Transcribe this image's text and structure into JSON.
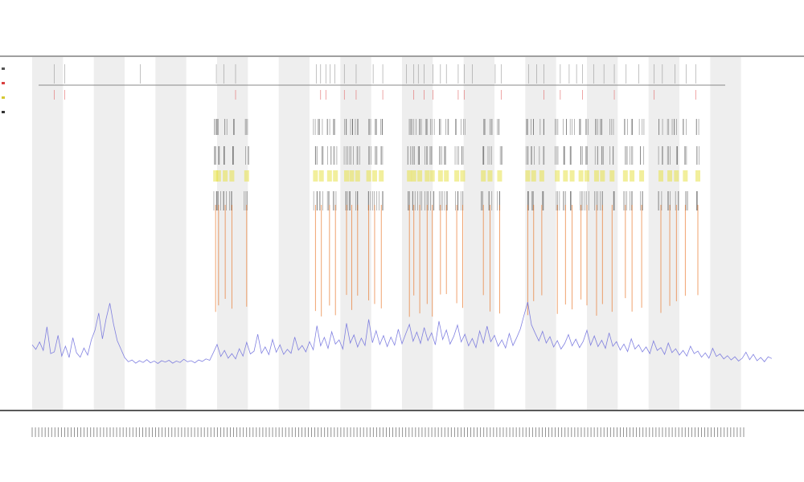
{
  "chart_data": {
    "type": "line",
    "title_lines": [
      "",
      "",
      ""
    ],
    "xlabel": "",
    "ylabel": "",
    "x_range": [
      0,
      100
    ],
    "y_range": [
      0,
      100
    ],
    "grid": false,
    "legend_position": "top-left",
    "legend": [
      {
        "name": "",
        "color": "#555555"
      },
      {
        "name": "",
        "color": "#d94040"
      },
      {
        "name": "",
        "color": "#d6c832"
      },
      {
        "name": "",
        "color": "#333333"
      }
    ],
    "band_count": 12,
    "band_color": "#eeeeee",
    "trace_color": "#6b6bdc",
    "spike_color": "#e8752a",
    "highlight_color": "#e7e24a",
    "tick_color": "#333333",
    "x_tick_count": 220,
    "spike_positions": [
      24.8,
      25.2,
      26.1,
      27.0,
      29.0,
      38.3,
      39.1,
      40.2,
      41.0,
      42.5,
      43.2,
      44.0,
      45.5,
      46.3,
      47.2,
      51.0,
      51.6,
      52.4,
      53.4,
      54.1,
      55.2,
      56.0,
      57.4,
      58.2,
      61.0,
      61.9,
      63.2,
      67.0,
      67.8,
      68.9,
      71.0,
      72.1,
      73.0,
      74.2,
      75.0,
      76.3,
      77.1,
      78.4,
      80.2,
      81.1,
      82.4,
      85.0,
      86.2,
      87.1,
      88.3,
      90.0
    ],
    "trace_points": [
      [
        0.0,
        18.4
      ],
      [
        0.5,
        17.1
      ],
      [
        1.0,
        19.2
      ],
      [
        1.5,
        16.8
      ],
      [
        2.0,
        23.5
      ],
      [
        2.5,
        15.9
      ],
      [
        3.0,
        16.4
      ],
      [
        3.5,
        21.1
      ],
      [
        4.0,
        15.2
      ],
      [
        4.5,
        18.0
      ],
      [
        5.0,
        14.8
      ],
      [
        5.5,
        20.4
      ],
      [
        6.0,
        16.1
      ],
      [
        6.5,
        14.9
      ],
      [
        7.0,
        17.5
      ],
      [
        7.5,
        15.5
      ],
      [
        8.0,
        19.8
      ],
      [
        8.5,
        22.6
      ],
      [
        9.0,
        27.4
      ],
      [
        9.5,
        20.1
      ],
      [
        10.0,
        25.8
      ],
      [
        10.5,
        30.2
      ],
      [
        11.0,
        24.3
      ],
      [
        11.5,
        19.6
      ],
      [
        12.0,
        17.2
      ],
      [
        12.5,
        14.8
      ],
      [
        13.0,
        13.6
      ],
      [
        13.5,
        14.1
      ],
      [
        14.0,
        13.2
      ],
      [
        14.5,
        13.9
      ],
      [
        15.0,
        13.4
      ],
      [
        15.5,
        14.2
      ],
      [
        16.0,
        13.3
      ],
      [
        16.5,
        13.8
      ],
      [
        17.0,
        13.1
      ],
      [
        17.5,
        13.9
      ],
      [
        18.0,
        13.5
      ],
      [
        18.5,
        14.0
      ],
      [
        19.0,
        13.2
      ],
      [
        19.5,
        13.8
      ],
      [
        20.0,
        13.4
      ],
      [
        20.5,
        14.3
      ],
      [
        21.0,
        13.6
      ],
      [
        21.5,
        13.9
      ],
      [
        22.0,
        13.3
      ],
      [
        22.5,
        14.1
      ],
      [
        23.0,
        13.7
      ],
      [
        23.5,
        14.4
      ],
      [
        24.0,
        14.0
      ],
      [
        24.5,
        16.2
      ],
      [
        25.0,
        18.5
      ],
      [
        25.5,
        15.1
      ],
      [
        26.0,
        16.8
      ],
      [
        26.5,
        14.6
      ],
      [
        27.0,
        15.9
      ],
      [
        27.5,
        14.4
      ],
      [
        28.0,
        17.3
      ],
      [
        28.5,
        15.2
      ],
      [
        29.0,
        19.1
      ],
      [
        29.5,
        15.8
      ],
      [
        30.0,
        16.6
      ],
      [
        30.5,
        21.4
      ],
      [
        31.0,
        16.0
      ],
      [
        31.5,
        17.8
      ],
      [
        32.0,
        15.6
      ],
      [
        32.5,
        19.9
      ],
      [
        33.0,
        16.3
      ],
      [
        33.5,
        18.4
      ],
      [
        34.0,
        15.7
      ],
      [
        34.5,
        17.1
      ],
      [
        35.0,
        16.0
      ],
      [
        35.5,
        20.6
      ],
      [
        36.0,
        16.9
      ],
      [
        36.5,
        18.2
      ],
      [
        37.0,
        16.4
      ],
      [
        37.5,
        19.3
      ],
      [
        38.0,
        17.0
      ],
      [
        38.5,
        23.8
      ],
      [
        39.0,
        18.1
      ],
      [
        39.5,
        20.5
      ],
      [
        40.0,
        17.4
      ],
      [
        40.5,
        22.1
      ],
      [
        41.0,
        18.6
      ],
      [
        41.5,
        19.8
      ],
      [
        42.0,
        17.2
      ],
      [
        42.5,
        24.5
      ],
      [
        43.0,
        18.9
      ],
      [
        43.5,
        21.2
      ],
      [
        44.0,
        17.8
      ],
      [
        44.5,
        20.3
      ],
      [
        45.0,
        18.2
      ],
      [
        45.5,
        25.6
      ],
      [
        46.0,
        19.0
      ],
      [
        46.5,
        22.4
      ],
      [
        47.0,
        18.5
      ],
      [
        47.5,
        21.0
      ],
      [
        48.0,
        17.9
      ],
      [
        48.5,
        20.6
      ],
      [
        49.0,
        18.3
      ],
      [
        49.5,
        22.8
      ],
      [
        50.0,
        18.7
      ],
      [
        50.5,
        21.5
      ],
      [
        51.0,
        24.2
      ],
      [
        51.5,
        19.4
      ],
      [
        52.0,
        22.0
      ],
      [
        52.5,
        18.8
      ],
      [
        53.0,
        23.3
      ],
      [
        53.5,
        19.6
      ],
      [
        54.0,
        21.8
      ],
      [
        54.5,
        18.4
      ],
      [
        55.0,
        25.1
      ],
      [
        55.5,
        19.9
      ],
      [
        56.0,
        22.6
      ],
      [
        56.5,
        18.6
      ],
      [
        57.0,
        20.8
      ],
      [
        57.5,
        24.0
      ],
      [
        58.0,
        19.2
      ],
      [
        58.5,
        21.4
      ],
      [
        59.0,
        18.1
      ],
      [
        59.5,
        20.2
      ],
      [
        60.0,
        17.6
      ],
      [
        60.5,
        22.3
      ],
      [
        61.0,
        18.9
      ],
      [
        61.5,
        23.7
      ],
      [
        62.0,
        19.3
      ],
      [
        62.5,
        21.1
      ],
      [
        63.0,
        18.0
      ],
      [
        63.5,
        19.8
      ],
      [
        64.0,
        17.5
      ],
      [
        64.5,
        21.6
      ],
      [
        65.0,
        18.2
      ],
      [
        65.5,
        20.4
      ],
      [
        66.0,
        22.9
      ],
      [
        66.5,
        26.8
      ],
      [
        67.0,
        30.5
      ],
      [
        67.5,
        24.1
      ],
      [
        68.0,
        21.7
      ],
      [
        68.5,
        19.5
      ],
      [
        69.0,
        22.2
      ],
      [
        69.5,
        18.9
      ],
      [
        70.0,
        20.7
      ],
      [
        70.5,
        17.8
      ],
      [
        71.0,
        19.6
      ],
      [
        71.5,
        17.2
      ],
      [
        72.0,
        18.8
      ],
      [
        72.5,
        21.3
      ],
      [
        73.0,
        18.1
      ],
      [
        73.5,
        20.0
      ],
      [
        74.0,
        17.6
      ],
      [
        74.5,
        19.4
      ],
      [
        75.0,
        22.5
      ],
      [
        75.5,
        18.3
      ],
      [
        76.0,
        20.9
      ],
      [
        76.5,
        17.9
      ],
      [
        77.0,
        19.7
      ],
      [
        77.5,
        17.4
      ],
      [
        78.0,
        21.8
      ],
      [
        78.5,
        18.0
      ],
      [
        79.0,
        19.3
      ],
      [
        79.5,
        16.9
      ],
      [
        80.0,
        18.6
      ],
      [
        80.5,
        16.5
      ],
      [
        81.0,
        20.1
      ],
      [
        81.5,
        17.2
      ],
      [
        82.0,
        18.4
      ],
      [
        82.5,
        16.4
      ],
      [
        83.0,
        17.8
      ],
      [
        83.5,
        15.9
      ],
      [
        84.0,
        19.5
      ],
      [
        84.5,
        16.8
      ],
      [
        85.0,
        17.6
      ],
      [
        85.5,
        15.7
      ],
      [
        86.0,
        18.9
      ],
      [
        86.5,
        16.2
      ],
      [
        87.0,
        17.3
      ],
      [
        87.5,
        15.5
      ],
      [
        88.0,
        16.8
      ],
      [
        88.5,
        15.2
      ],
      [
        89.0,
        18.0
      ],
      [
        89.5,
        15.9
      ],
      [
        90.0,
        16.6
      ],
      [
        90.5,
        14.9
      ],
      [
        91.0,
        16.1
      ],
      [
        91.5,
        14.6
      ],
      [
        92.0,
        17.4
      ],
      [
        92.5,
        15.1
      ],
      [
        93.0,
        15.8
      ],
      [
        93.5,
        14.4
      ],
      [
        94.0,
        15.3
      ],
      [
        94.5,
        14.1
      ],
      [
        95.0,
        15.0
      ],
      [
        95.5,
        13.8
      ],
      [
        96.0,
        14.6
      ],
      [
        96.5,
        16.3
      ],
      [
        97.0,
        14.2
      ],
      [
        97.5,
        15.7
      ],
      [
        98.0,
        13.9
      ],
      [
        98.5,
        14.8
      ],
      [
        99.0,
        13.6
      ],
      [
        99.5,
        15.0
      ],
      [
        100.0,
        14.5
      ]
    ],
    "top_panel_ticks": [
      3.0,
      4.4,
      14.6,
      24.9,
      25.9,
      27.5,
      38.4,
      39.0,
      39.7,
      40.3,
      40.9,
      42.2,
      43.8,
      46.1,
      47.4,
      50.6,
      51.6,
      52.2,
      53.0,
      54.2,
      55.2,
      56.0,
      57.6,
      58.4,
      59.5,
      62.6,
      63.4,
      67.1,
      68.2,
      69.2,
      71.4,
      72.6,
      73.6,
      74.4,
      75.9,
      77.3,
      78.7,
      80.3,
      82.0,
      84.1,
      85.2,
      86.9,
      88.4,
      89.7
    ]
  }
}
